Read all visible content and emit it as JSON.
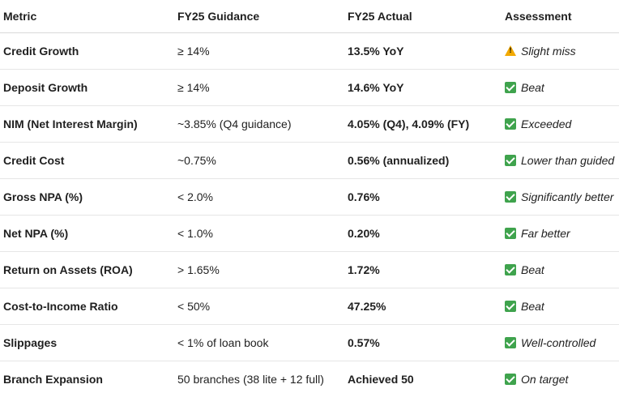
{
  "headers": {
    "metric": "Metric",
    "guidance": "FY25 Guidance",
    "actual": "FY25 Actual",
    "assessment": "Assessment"
  },
  "rows": [
    {
      "metric": "Credit Growth",
      "guidance": "≥ 14%",
      "actual": "13.5% YoY",
      "assessment": "Slight miss",
      "icon": "warning-icon"
    },
    {
      "metric": "Deposit Growth",
      "guidance": "≥ 14%",
      "actual": "14.6% YoY",
      "assessment": "Beat",
      "icon": "check-icon"
    },
    {
      "metric": "NIM (Net Interest Margin)",
      "guidance": "~3.85% (Q4 guidance)",
      "actual": "4.05% (Q4), 4.09% (FY)",
      "assessment": "Exceeded",
      "icon": "check-icon"
    },
    {
      "metric": "Credit Cost",
      "guidance": "~0.75%",
      "actual": "0.56% (annualized)",
      "assessment": "Lower than guided",
      "icon": "check-icon"
    },
    {
      "metric": "Gross NPA (%)",
      "guidance": "< 2.0%",
      "actual": "0.76%",
      "assessment": "Significantly better",
      "icon": "check-icon"
    },
    {
      "metric": "Net NPA (%)",
      "guidance": "< 1.0%",
      "actual": "0.20%",
      "assessment": "Far better",
      "icon": "check-icon"
    },
    {
      "metric": "Return on Assets (ROA)",
      "guidance": "> 1.65%",
      "actual": "1.72%",
      "assessment": "Beat",
      "icon": "check-icon"
    },
    {
      "metric": "Cost-to-Income Ratio",
      "guidance": "< 50%",
      "actual": "47.25%",
      "assessment": "Beat",
      "icon": "check-icon"
    },
    {
      "metric": "Slippages",
      "guidance": "< 1% of loan book",
      "actual": "0.57%",
      "assessment": "Well-controlled",
      "icon": "check-icon"
    },
    {
      "metric": "Branch Expansion",
      "guidance": "50 branches (38 lite + 12 full)",
      "actual": "Achieved 50",
      "assessment": "On target",
      "icon": "check-icon"
    }
  ]
}
